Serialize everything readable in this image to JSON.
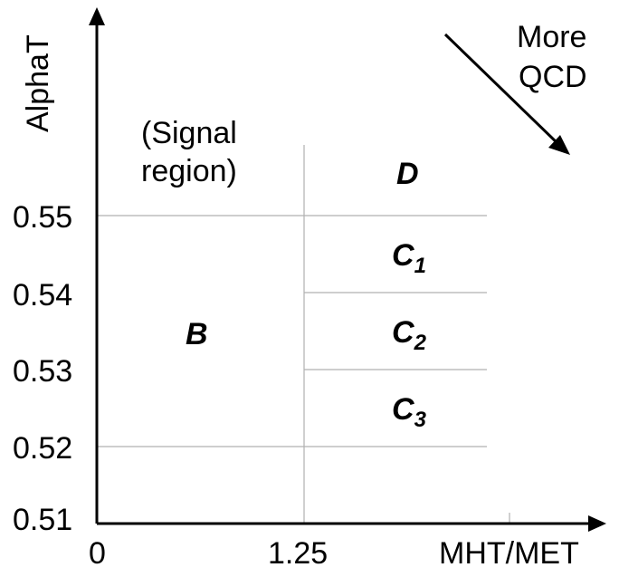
{
  "axes": {
    "y_label": "AlphaT",
    "x_label": "MHT/MET",
    "y_ticks": [
      "0.55",
      "0.54",
      "0.53",
      "0.52",
      "0.51"
    ],
    "x_ticks": [
      "0",
      "1.25"
    ]
  },
  "annotation": {
    "line1": "More",
    "line2": "QCD"
  },
  "signal_note": {
    "line1": "(Signal",
    "line2": "region)"
  },
  "regions": {
    "B": "B",
    "D": "D",
    "C1": {
      "letter": "C",
      "sub": "1"
    },
    "C2": {
      "letter": "C",
      "sub": "2"
    },
    "C3": {
      "letter": "C",
      "sub": "3"
    }
  }
}
